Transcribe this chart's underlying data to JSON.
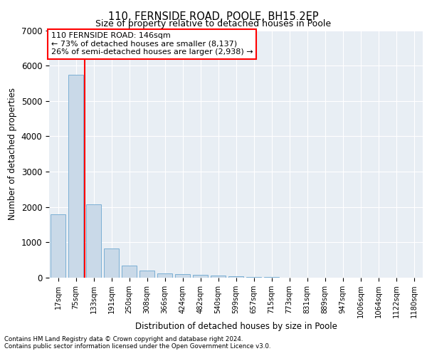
{
  "title1": "110, FERNSIDE ROAD, POOLE, BH15 2EP",
  "title2": "Size of property relative to detached houses in Poole",
  "xlabel": "Distribution of detached houses by size in Poole",
  "ylabel": "Number of detached properties",
  "footnote1": "Contains HM Land Registry data © Crown copyright and database right 2024.",
  "footnote2": "Contains public sector information licensed under the Open Government Licence v3.0.",
  "annotation_title": "110 FERNSIDE ROAD: 146sqm",
  "annotation_line2": "← 73% of detached houses are smaller (8,137)",
  "annotation_line3": "26% of semi-detached houses are larger (2,938) →",
  "bar_labels": [
    "17sqm",
    "75sqm",
    "133sqm",
    "191sqm",
    "250sqm",
    "308sqm",
    "366sqm",
    "424sqm",
    "482sqm",
    "540sqm",
    "599sqm",
    "657sqm",
    "715sqm",
    "773sqm",
    "831sqm",
    "889sqm",
    "947sqm",
    "1006sqm",
    "1064sqm",
    "1122sqm",
    "1180sqm"
  ],
  "bar_values": [
    1800,
    5750,
    2070,
    830,
    340,
    200,
    130,
    100,
    80,
    55,
    40,
    30,
    20,
    0,
    0,
    0,
    0,
    0,
    0,
    0,
    0
  ],
  "bar_color": "#c9d9e8",
  "bar_edge_color": "#7bafd4",
  "red_line_x": 1.5,
  "ylim": [
    0,
    7000
  ],
  "yticks": [
    0,
    1000,
    2000,
    3000,
    4000,
    5000,
    6000,
    7000
  ],
  "plot_bg_color": "#e8eef4",
  "red_line_color": "red"
}
